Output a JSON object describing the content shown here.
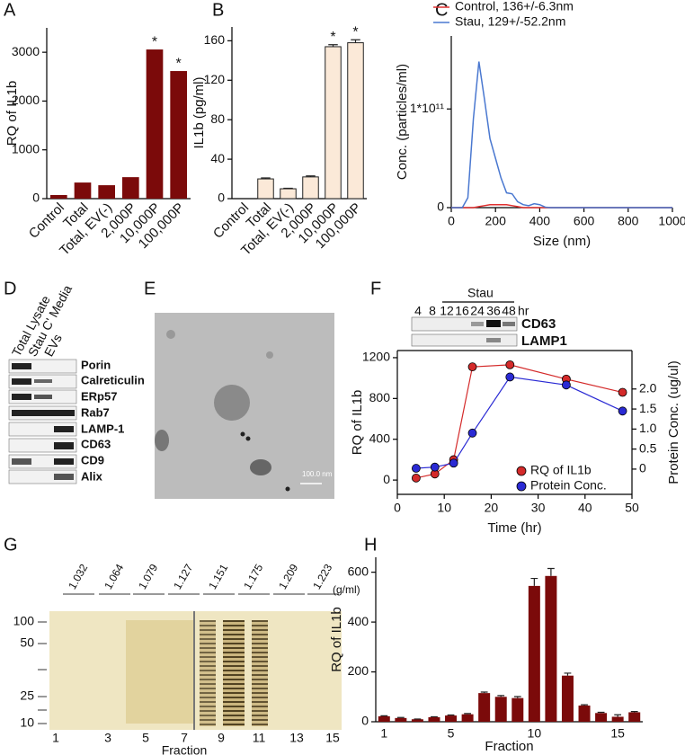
{
  "chart_data": [
    {
      "type": "bar",
      "panel_label": "A",
      "ylabel": "RQ of IL1b",
      "categories": [
        "Control",
        "Total",
        "Total, EV(-)",
        "2,000P",
        "10,000P",
        "100,000P"
      ],
      "values": [
        74,
        330,
        275,
        440,
        3057,
        2615
      ],
      "color": "#7b0a0a",
      "ylim": [
        0,
        3500
      ],
      "yticks": [
        0,
        1000,
        2000,
        3000
      ],
      "annotations": [
        {
          "category": "10,000P",
          "text": "*"
        },
        {
          "category": "100,000P",
          "text": "*"
        }
      ]
    },
    {
      "type": "bar",
      "panel_label": "B",
      "ylabel": "IL1b (pg/ml)",
      "categories": [
        "Control",
        "Total",
        "Total, EV(-)",
        "2,000P",
        "10,000P",
        "100,000P"
      ],
      "values": [
        0,
        20,
        10,
        22,
        154,
        158
      ],
      "errors": [
        0,
        1,
        0.5,
        1,
        2,
        3
      ],
      "color": "#fbe9d8",
      "edgecolor": "#222222",
      "ylim": [
        0,
        174
      ],
      "yticks": [
        0,
        40,
        80,
        120,
        160
      ],
      "annotations": [
        {
          "category": "10,000P",
          "text": "*"
        },
        {
          "category": "100,000P",
          "text": "*"
        }
      ]
    },
    {
      "type": "line",
      "panel_label": "C",
      "xlabel": "Size (nm)",
      "ylabel": "Conc. (particles/ml)",
      "x": [
        0,
        50,
        75,
        100,
        125,
        150,
        175,
        200,
        225,
        250,
        275,
        300,
        325,
        350,
        375,
        400,
        425,
        450,
        500,
        1000
      ],
      "series": [
        {
          "name": "Control, 136+/-6.3nm",
          "color": "#e03030",
          "values": [
            0,
            0,
            0,
            0,
            1000000000.0,
            2000000000.0,
            3000000000.0,
            3000000000.0,
            3000000000.0,
            3000000000.0,
            2000000000.0,
            1000000000.0,
            0,
            0,
            0,
            0,
            0,
            0,
            0,
            0
          ]
        },
        {
          "name": "Stau, 129+/-52.2nm",
          "color": "#4a78d0",
          "values": [
            0,
            0,
            10000000000.0,
            90000000000.0,
            148000000000.0,
            110000000000.0,
            70000000000.0,
            50000000000.0,
            30000000000.0,
            15000000000.0,
            14000000000.0,
            6000000000.0,
            3000000000.0,
            2000000000.0,
            4000000000.0,
            3000000000.0,
            500000000.0,
            0,
            0,
            0
          ]
        }
      ],
      "xlim": [
        0,
        1000
      ],
      "xticks": [
        0,
        200,
        400,
        600,
        800,
        1000
      ],
      "ylim": [
        0,
        174000000000.0
      ],
      "yticks": [
        0,
        {
          "value": 100000000000.0,
          "label": "1*10¹¹"
        }
      ],
      "legend": "top"
    },
    {
      "type": "line",
      "panel_label": "F",
      "xlabel": "Time (hr)",
      "ylabel": "RQ of IL1b",
      "y2label": "Protein Conc. (ug/ul)",
      "x": [
        4,
        8,
        12,
        16,
        24,
        36,
        48
      ],
      "series": [
        {
          "name": "RQ of IL1b",
          "color": "#d42a2a",
          "values": [
            20,
            60,
            200,
            1110,
            1130,
            990,
            860
          ]
        },
        {
          "name": "Protein Conc.",
          "color": "#2a2ad4",
          "axis": "y2",
          "values": [
            0.02,
            0.05,
            0.15,
            0.9,
            2.3,
            2.1,
            1.45
          ]
        }
      ],
      "xlim": [
        0,
        50
      ],
      "xticks": [
        0,
        10,
        20,
        30,
        40,
        50
      ],
      "ylim": [
        -140,
        1270
      ],
      "yticks": [
        0,
        400,
        800,
        1200
      ],
      "y2lim": [
        -0.63,
        2.96
      ],
      "y2ticks": [
        0,
        0.5,
        {
          "value": 1,
          "label": "1.0"
        },
        1.5,
        {
          "value": 2,
          "label": "2.0"
        }
      ],
      "markers": true,
      "box": true,
      "legend": "lower right"
    },
    {
      "type": "bar",
      "panel_label": "H",
      "xlabel": "Fraction",
      "ylabel": "RQ of IL1b",
      "categories": [
        "1",
        null,
        null,
        null,
        "5",
        null,
        null,
        null,
        null,
        "10",
        null,
        null,
        null,
        null,
        "15",
        null
      ],
      "values": [
        22,
        15,
        10,
        18,
        25,
        30,
        115,
        100,
        95,
        545,
        585,
        185,
        65,
        35,
        20,
        38
      ],
      "errors": [
        2,
        2,
        1,
        2,
        2,
        3,
        4,
        5,
        6,
        30,
        30,
        10,
        3,
        3,
        8,
        3
      ],
      "color": "#7b0a0a",
      "ylim": [
        0,
        660
      ],
      "yticks": [
        0,
        200,
        400,
        600
      ]
    }
  ],
  "blot_d": {
    "panel_label": "D",
    "columns": [
      "Total Lysate",
      "Stau C' Media",
      "EVs"
    ],
    "rows": [
      "Porin",
      "Calreticulin",
      "ERp57",
      "Rab7",
      "LAMP-1",
      "CD63",
      "CD9",
      "Alix"
    ]
  },
  "image_e": {
    "panel_label": "E",
    "scale_bar": "100.0 nm"
  },
  "blot_f": {
    "group": "Stau",
    "lanes": [
      "4",
      "8",
      "12",
      "16",
      "24",
      "36",
      "48"
    ],
    "unit": "hr",
    "rows": [
      "CD63",
      "LAMP1"
    ]
  },
  "gel_g": {
    "panel_label": "G",
    "densities": [
      "1.032",
      "1.064",
      "1.079",
      "1.127",
      "1.151",
      "1.175",
      "1.209",
      "1.223"
    ],
    "density_unit": "(g/ml)",
    "markers": [
      "100",
      "50",
      "25",
      "10"
    ],
    "lanes": [
      "1",
      "3",
      "5",
      "7",
      "9",
      "11",
      "13",
      "15"
    ],
    "xlabel": "Fraction"
  }
}
